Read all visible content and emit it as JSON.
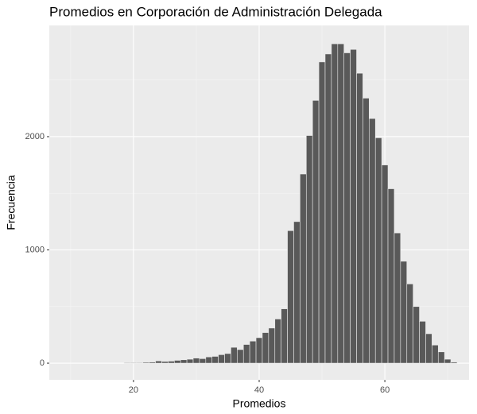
{
  "chart_data": {
    "type": "histogram",
    "title": "Promedios en Corporación de Administración Delegada",
    "x_label": "Promedios",
    "y_label": "Frecuencia",
    "bins": [
      18.5,
      19.5,
      20.5,
      21.5,
      22.5,
      23.5,
      24.5,
      25.5,
      26.5,
      27.5,
      28.5,
      29.5,
      30.5,
      31.5,
      32.5,
      33.5,
      34.5,
      35.5,
      36.5,
      37.5,
      38.5,
      39.5,
      40.5,
      41.5,
      42.5,
      43.5,
      44.5,
      45.5,
      46.5,
      47.5,
      48.5,
      49.5,
      50.5,
      51.5,
      52.5,
      53.5,
      54.5,
      55.5,
      56.5,
      57.5,
      58.5,
      59.5,
      60.5,
      61.5,
      62.5,
      63.5,
      64.5,
      65.5,
      66.5,
      67.5,
      68.5,
      69.5,
      70.5,
      71.5
    ],
    "values": [
      5,
      5,
      5,
      8,
      10,
      20,
      15,
      18,
      25,
      30,
      35,
      45,
      40,
      55,
      60,
      75,
      85,
      140,
      120,
      165,
      195,
      225,
      270,
      310,
      390,
      480,
      1170,
      1250,
      1670,
      2010,
      2320,
      2660,
      2730,
      2820,
      2820,
      2740,
      2770,
      2560,
      2340,
      2160,
      1990,
      1750,
      1540,
      1150,
      900,
      700,
      500,
      370,
      260,
      160,
      100,
      35,
      10
    ],
    "color": "#595959",
    "xlim": [
      6.6,
      73.4
    ],
    "ylim": [
      -147,
      2982
    ],
    "xticks": [
      20,
      40,
      60
    ],
    "yticks": [
      0,
      1000,
      2000
    ],
    "x_minor_ticks": [
      10,
      30,
      50,
      70
    ],
    "y_minor_ticks": [
      500,
      1500,
      2500
    ],
    "grid": true
  }
}
